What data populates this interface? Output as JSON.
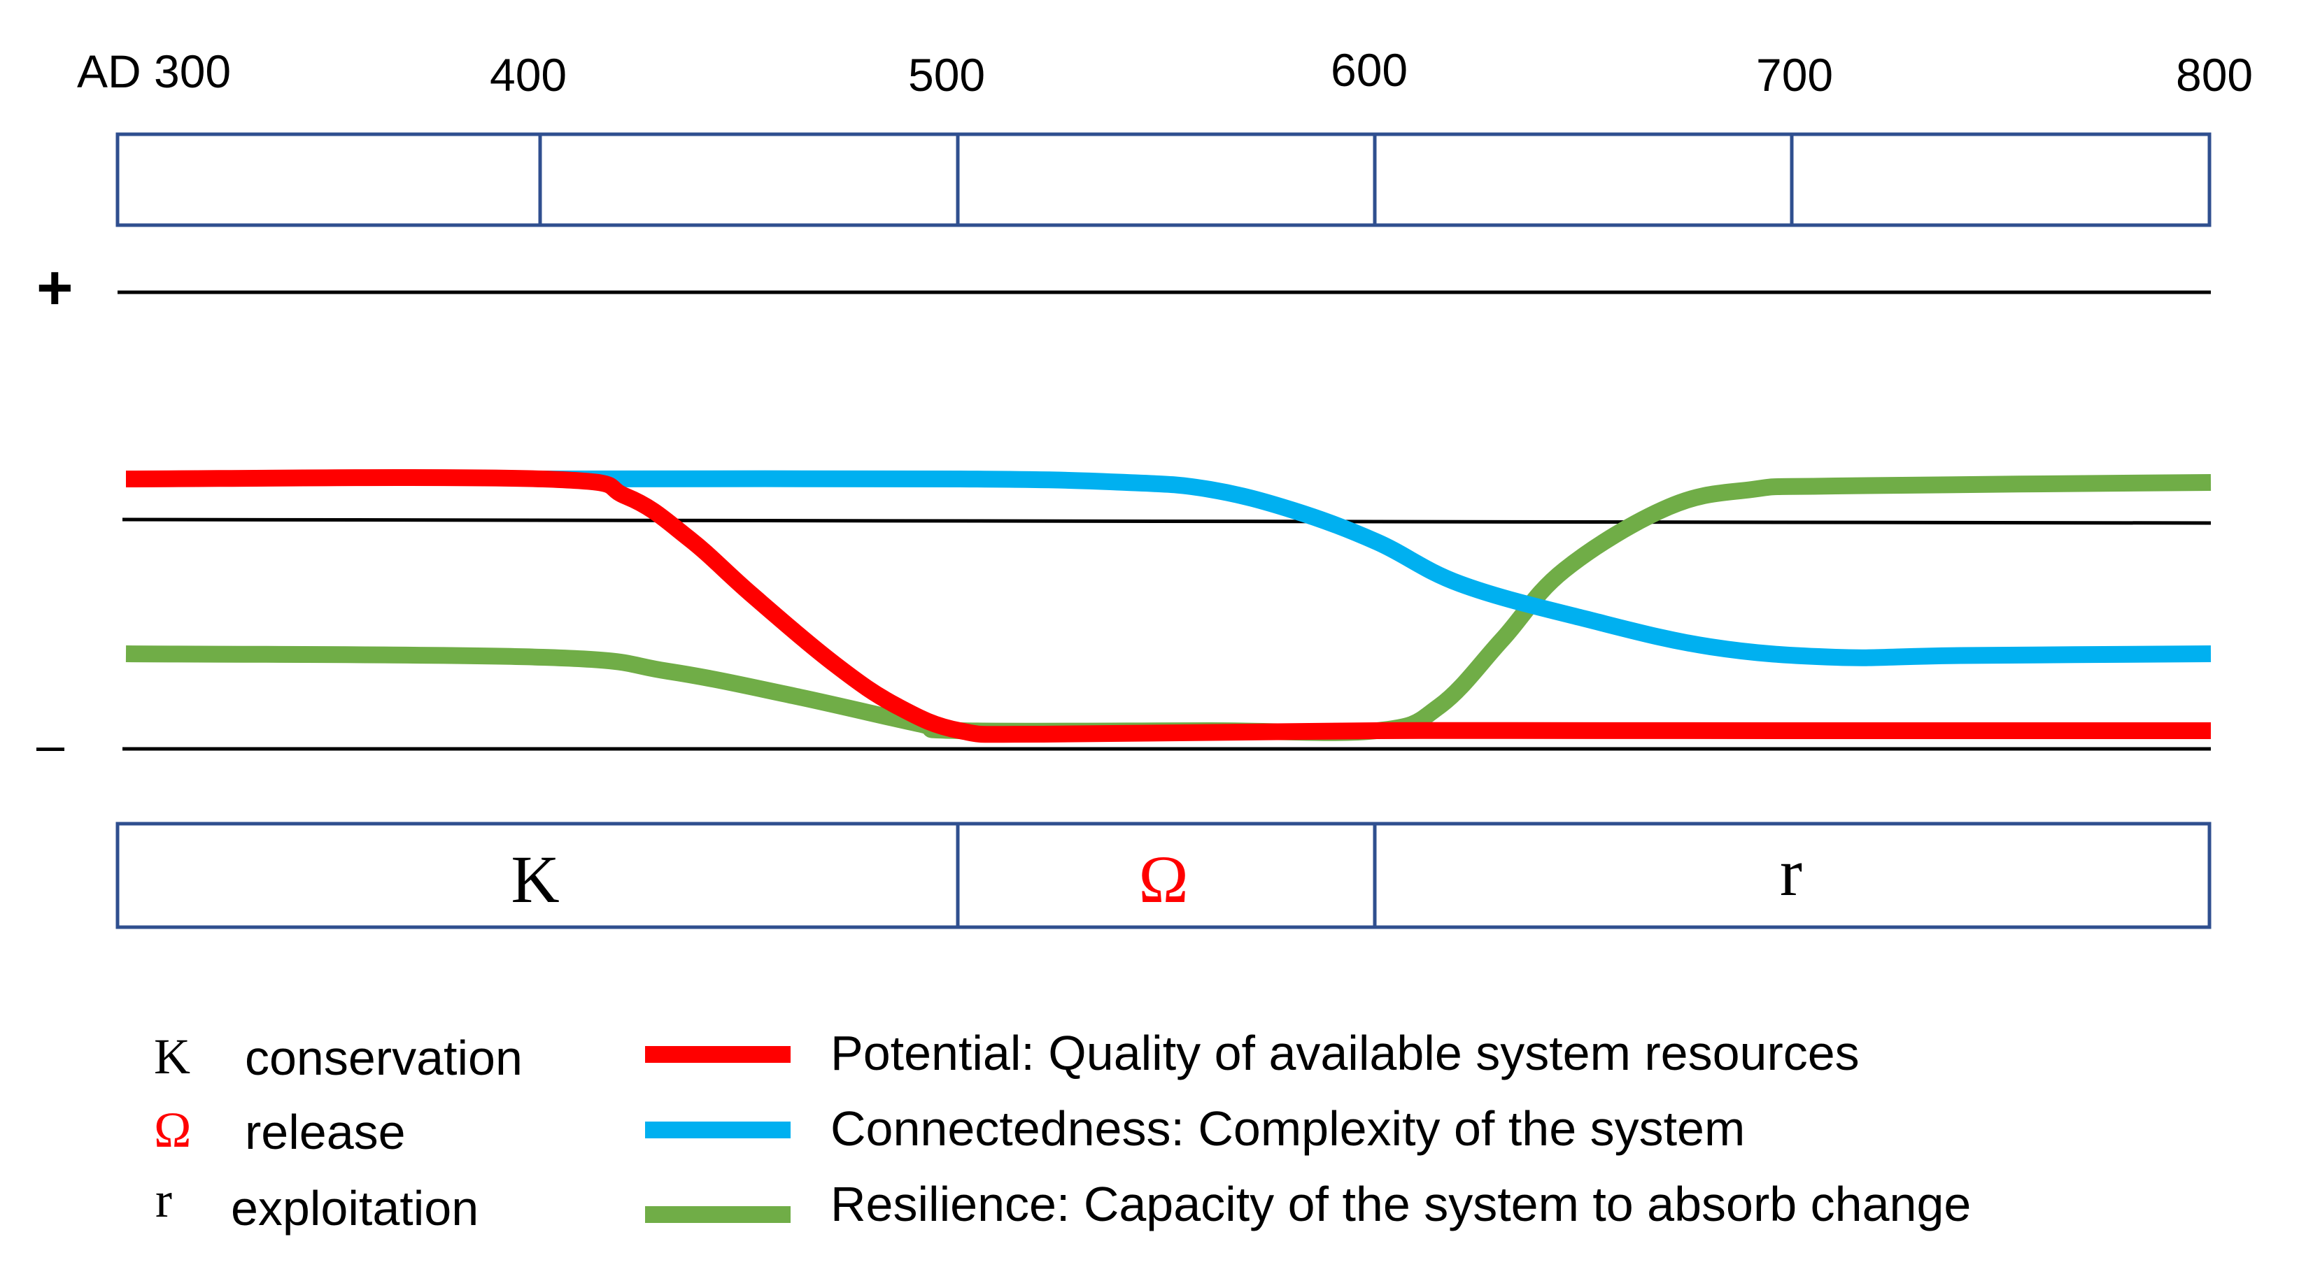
{
  "timeline": {
    "labels": [
      "AD 300",
      "400",
      "500",
      "600",
      "700",
      "800"
    ]
  },
  "axis": {
    "plus_label": "+",
    "minus_label": "–"
  },
  "phases": [
    {
      "symbol": "K",
      "color": "#000000",
      "start": 300,
      "end": 500
    },
    {
      "symbol": "Ω",
      "color": "#ff0000",
      "start": 500,
      "end": 600
    },
    {
      "symbol": "r",
      "color": "#000000",
      "start": 600,
      "end": 800
    }
  ],
  "legend": {
    "phase_items": [
      {
        "symbol": "K",
        "label": "conservation",
        "color": "#000000"
      },
      {
        "symbol": "Ω",
        "label": "release",
        "color": "#ff0000"
      },
      {
        "symbol": "r",
        "label": "exploitation",
        "color": "#000000"
      }
    ],
    "series_items": [
      {
        "label": "Potential: Quality of available system resources",
        "color": "#ff0000"
      },
      {
        "label": "Connectedness: Complexity of the system",
        "color": "#00b0f0"
      },
      {
        "label": "Resilience: Capacity of the system to absorb change",
        "color": "#70ad47"
      }
    ]
  },
  "chart_data": {
    "type": "line",
    "x_range": [
      300,
      800
    ],
    "y_range": [
      0,
      1
    ],
    "series": [
      {
        "name": "Potential",
        "color": "#ff0000",
        "points": [
          [
            300,
            0.75
          ],
          [
            400,
            0.75
          ],
          [
            420,
            0.7
          ],
          [
            435,
            0.58
          ],
          [
            450,
            0.42
          ],
          [
            470,
            0.22
          ],
          [
            485,
            0.1
          ],
          [
            500,
            0.03
          ],
          [
            520,
            0.02
          ],
          [
            600,
            0.03
          ],
          [
            700,
            0.03
          ],
          [
            800,
            0.03
          ]
        ]
      },
      {
        "name": "Connectedness",
        "color": "#00b0f0",
        "points": [
          [
            400,
            0.75
          ],
          [
            500,
            0.75
          ],
          [
            540,
            0.74
          ],
          [
            560,
            0.72
          ],
          [
            580,
            0.66
          ],
          [
            600,
            0.57
          ],
          [
            620,
            0.45
          ],
          [
            650,
            0.35
          ],
          [
            680,
            0.27
          ],
          [
            710,
            0.24
          ],
          [
            740,
            0.245
          ],
          [
            800,
            0.25
          ]
        ]
      },
      {
        "name": "Resilience",
        "color": "#70ad47",
        "points": [
          [
            300,
            0.25
          ],
          [
            400,
            0.24
          ],
          [
            430,
            0.2
          ],
          [
            460,
            0.13
          ],
          [
            490,
            0.05
          ],
          [
            500,
            0.03
          ],
          [
            560,
            0.03
          ],
          [
            600,
            0.03
          ],
          [
            615,
            0.1
          ],
          [
            630,
            0.29
          ],
          [
            645,
            0.49
          ],
          [
            670,
            0.67
          ],
          [
            690,
            0.72
          ],
          [
            710,
            0.73
          ],
          [
            800,
            0.74
          ]
        ]
      }
    ]
  }
}
